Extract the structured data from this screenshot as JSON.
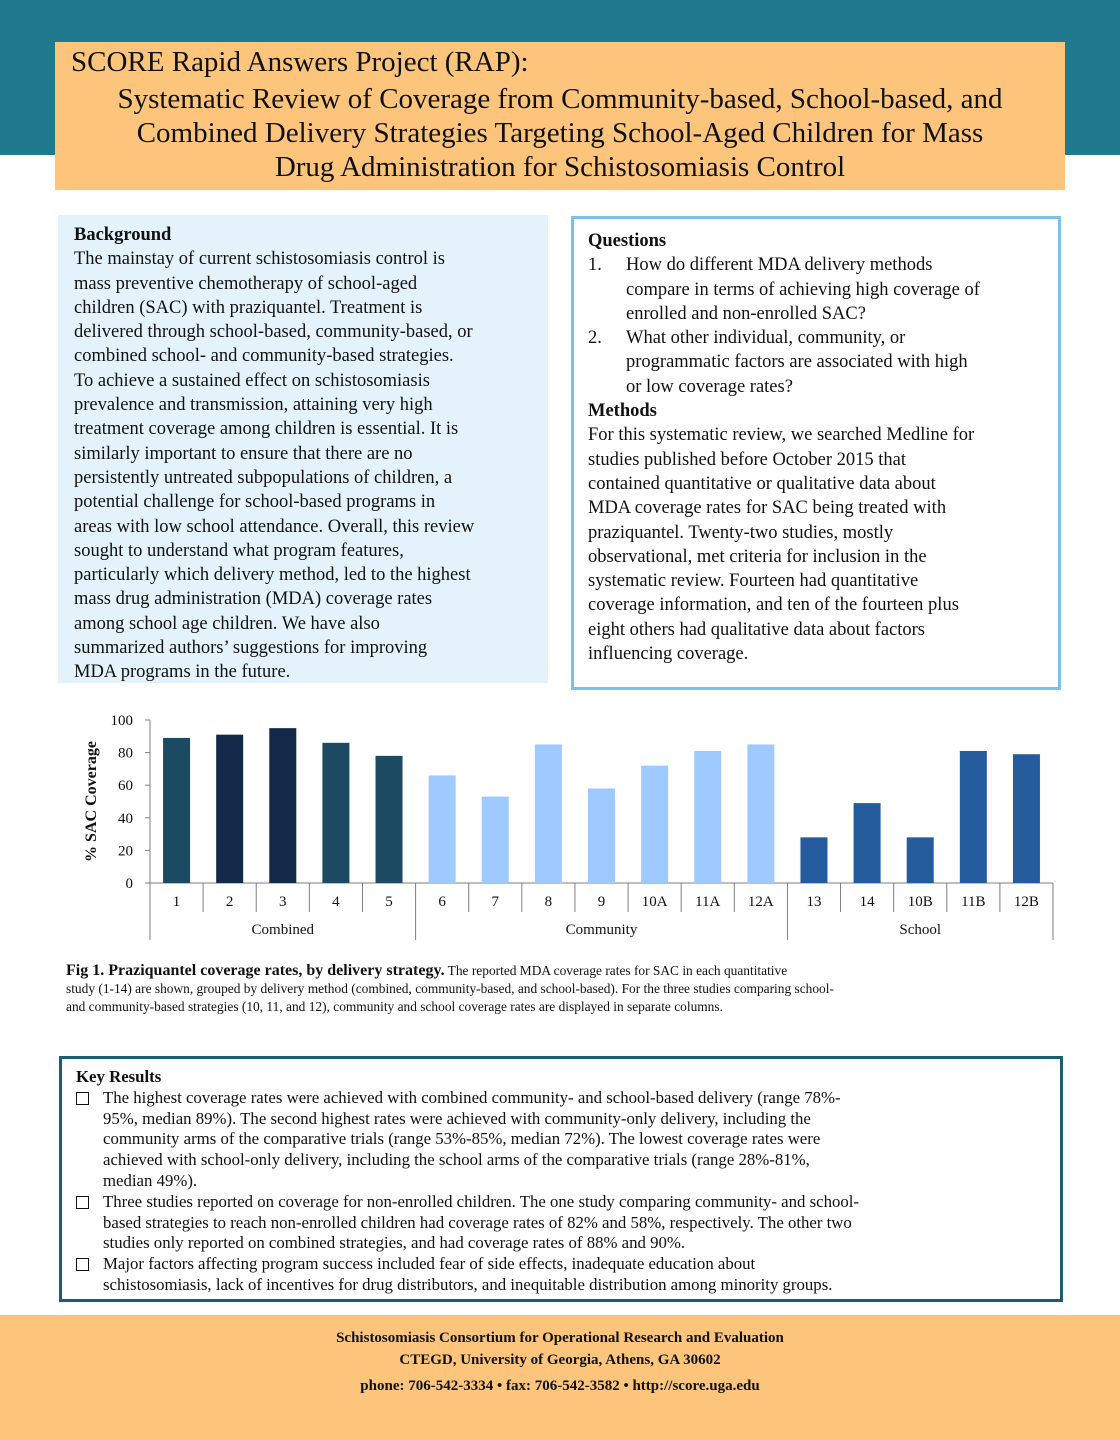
{
  "title": {
    "line1": "SCORE Rapid Answers Project (RAP):",
    "line2": "Systematic Review of Coverage from Community-based, School-based, and",
    "line3": "Combined Delivery Strategies Targeting School-Aged Children for Mass",
    "line4": "Drug Administration for Schistosomiasis Control"
  },
  "background": {
    "heading": "Background",
    "lines": [
      "The mainstay of current schistosomiasis control is",
      "mass preventive chemotherapy of school-aged",
      "children (SAC) with praziquantel. Treatment is",
      "delivered through school-based, community-based, or",
      "combined school- and community-based strategies.",
      "To achieve a sustained effect on schistosomiasis",
      "prevalence and transmission, attaining very high",
      "treatment coverage among children is essential. It is",
      "similarly important to ensure that there are no",
      "persistently untreated subpopulations of children, a",
      "potential challenge for school-based programs in",
      "areas with low school attendance. Overall, this review",
      "sought to understand what program features,",
      "particularly which delivery method, led to the highest",
      "mass drug administration (MDA) coverage rates",
      "among school age children. We have also",
      "summarized authors’ suggestions for improving",
      "MDA programs in the future."
    ]
  },
  "questions": {
    "heading": "Questions",
    "items": [
      {
        "num": "1.",
        "lines": [
          "How do different MDA delivery methods",
          "compare in terms of achieving high coverage of",
          "enrolled and non-enrolled SAC?"
        ]
      },
      {
        "num": "2.",
        "lines": [
          "What other individual, community, or",
          "programmatic factors are associated with high",
          "or low coverage rates?"
        ]
      }
    ]
  },
  "methods": {
    "heading": "Methods",
    "lines": [
      "For this systematic review, we searched Medline for",
      "studies published before October 2015 that",
      "contained quantitative or qualitative data about",
      "MDA coverage rates for SAC being treated with",
      "praziquantel. Twenty-two studies, mostly",
      "observational, met criteria for inclusion in the",
      "systematic review. Fourteen had quantitative",
      "coverage information, and ten of the fourteen plus",
      "eight others had qualitative data about factors",
      "influencing coverage."
    ]
  },
  "chart_data": {
    "type": "bar",
    "ylabel": "% SAC Coverage",
    "ylim": [
      0,
      100
    ],
    "yticks": [
      0,
      20,
      40,
      60,
      80,
      100
    ],
    "grid": false,
    "categories": [
      "1",
      "2",
      "3",
      "4",
      "5",
      "6",
      "7",
      "8",
      "9",
      "10A",
      "11A",
      "12A",
      "13",
      "14",
      "10B",
      "11B",
      "12B"
    ],
    "values": [
      89,
      91,
      95,
      86,
      78,
      66,
      53,
      85,
      58,
      72,
      81,
      85,
      28,
      49,
      28,
      81,
      79
    ],
    "colors": [
      "#1b4a62",
      "#13294a",
      "#13294a",
      "#1b4a62",
      "#1b4a62",
      "#9ecaff",
      "#9ecaff",
      "#9ecaff",
      "#9ecaff",
      "#9ecaff",
      "#9ecaff",
      "#9ecaff",
      "#245b9c",
      "#245b9c",
      "#245b9c",
      "#245b9c",
      "#245b9c"
    ],
    "groups": [
      {
        "name": "Combined",
        "count": 5
      },
      {
        "name": "Community",
        "count": 7
      },
      {
        "name": "School",
        "count": 5
      }
    ]
  },
  "caption": {
    "lead": "Fig 1. Praziquantel coverage rates, by delivery strategy.",
    "line1": " The reported MDA coverage rates for SAC in each quantitative",
    "line2": "study (1-14) are shown, grouped by delivery method (combined, community-based, and school-based). For the three studies comparing school-",
    "line3": "and community-based strategies (10, 11, and 12), community and school coverage rates are displayed in separate columns."
  },
  "key_results": {
    "heading": "Key Results",
    "items": [
      {
        "lines": [
          "The highest coverage rates were achieved with combined community- and school-based delivery (range 78%-",
          "95%, median 89%). The second highest rates were achieved with community-only delivery, including the",
          "community arms of the comparative trials (range 53%-85%, median 72%). The lowest coverage rates were",
          "achieved with school-only delivery, including the school arms of the comparative trials (range 28%-81%,",
          "median 49%)."
        ]
      },
      {
        "lines": [
          "Three studies reported on coverage for non-enrolled children. The one study comparing community- and school-",
          "based strategies to reach non-enrolled children had coverage rates of 82% and 58%, respectively. The other two",
          "studies only reported on combined strategies, and had coverage rates of 88% and 90%."
        ]
      },
      {
        "lines": [
          "Major factors affecting program success included fear of side effects, inadequate education about",
          "schistosomiasis, lack of incentives for drug distributors, and inequitable distribution among minority groups."
        ]
      }
    ]
  },
  "footer": {
    "line1": "Schistosomiasis Consortium for Operational Research and Evaluation",
    "line2": "CTEGD, University of Georgia, Athens, GA 30602",
    "line3": "phone: 706-542-3334 • fax: 706-542-3582 • http://score.uga.edu"
  },
  "colors": {
    "top_band": "#1e7a8c",
    "title_bg": "#fcc57b",
    "background_box": "#e3f2fb",
    "questions_border": "#7ec1e8",
    "key_results_border": "#1b5e6d"
  }
}
